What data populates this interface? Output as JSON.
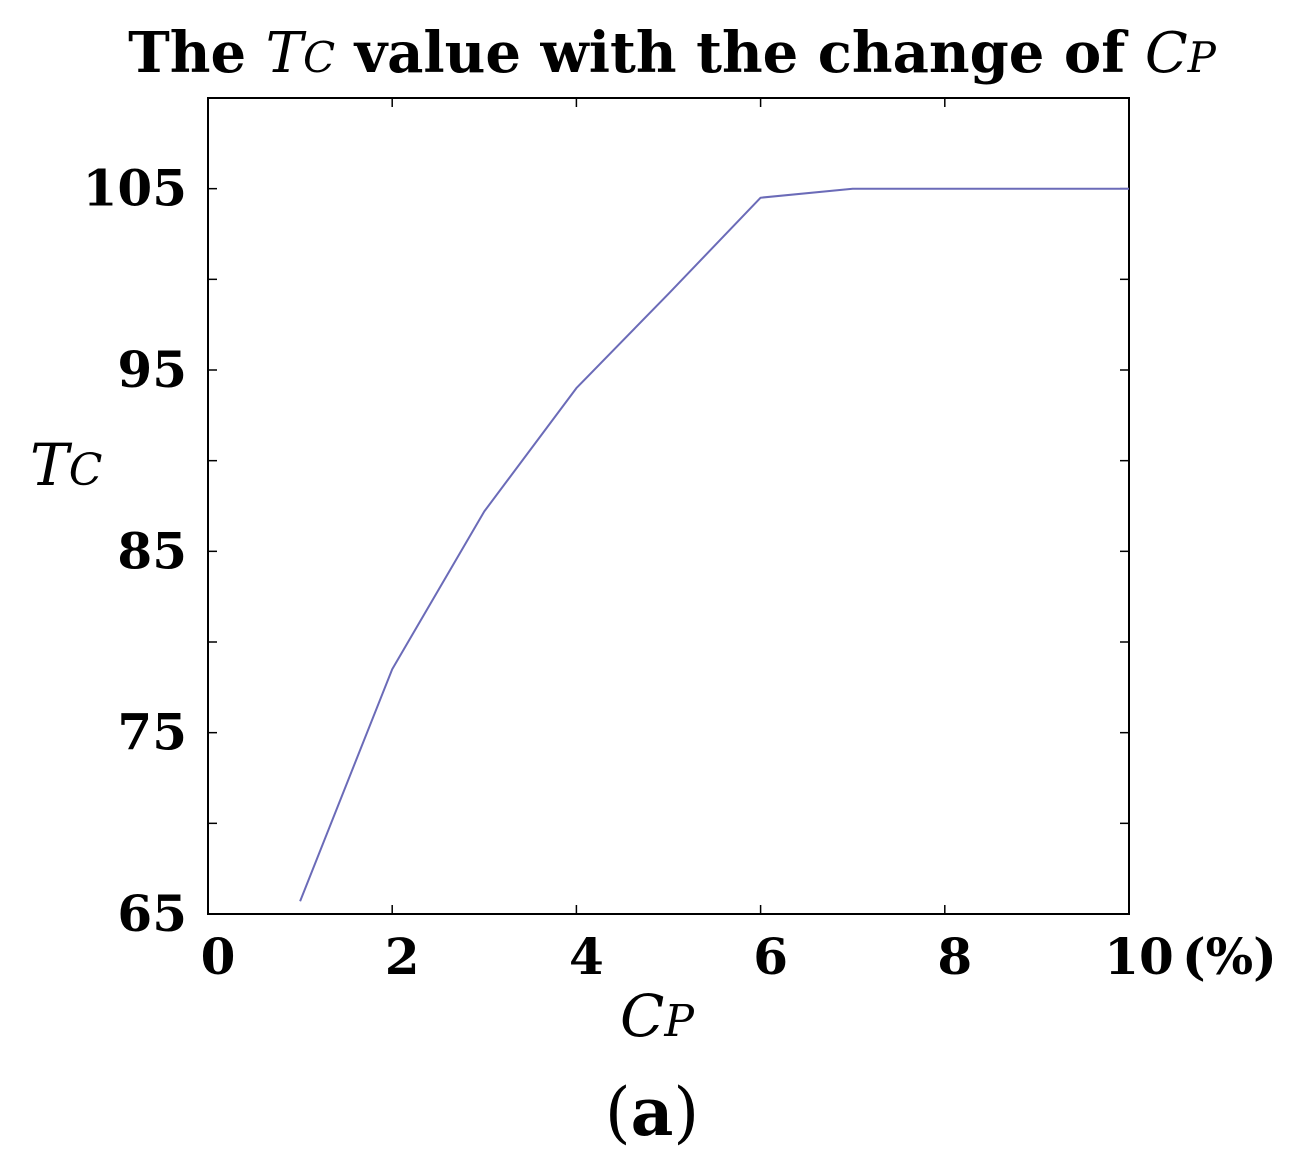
{
  "chart_data": {
    "type": "line",
    "title": {
      "before": "The ",
      "var_main": "T",
      "var_sub": "C",
      "middle": " value with the change of ",
      "var2_main": "C",
      "var2_sub": "P"
    },
    "xlabel": {
      "main": "C",
      "sub": "P"
    },
    "ylabel": {
      "main": "T",
      "sub": "C"
    },
    "x_unit": "(%)",
    "xlim": [
      0,
      10
    ],
    "ylim": [
      65,
      110
    ],
    "x_ticks": [
      0,
      2,
      4,
      6,
      8,
      10
    ],
    "y_ticks": [
      65,
      75,
      85,
      95,
      105
    ],
    "grid": false,
    "series": [
      {
        "color": "#6b6bb8",
        "x": [
          1,
          2,
          3,
          4,
          5,
          6,
          7,
          8,
          9,
          10
        ],
        "y": [
          65.7,
          78.5,
          87.2,
          94.0,
          99.2,
          104.5,
          105.0,
          105.0,
          105.0,
          105.0
        ]
      }
    ]
  },
  "panel_label": {
    "open": "(",
    "letter": "a",
    "close": ")"
  }
}
